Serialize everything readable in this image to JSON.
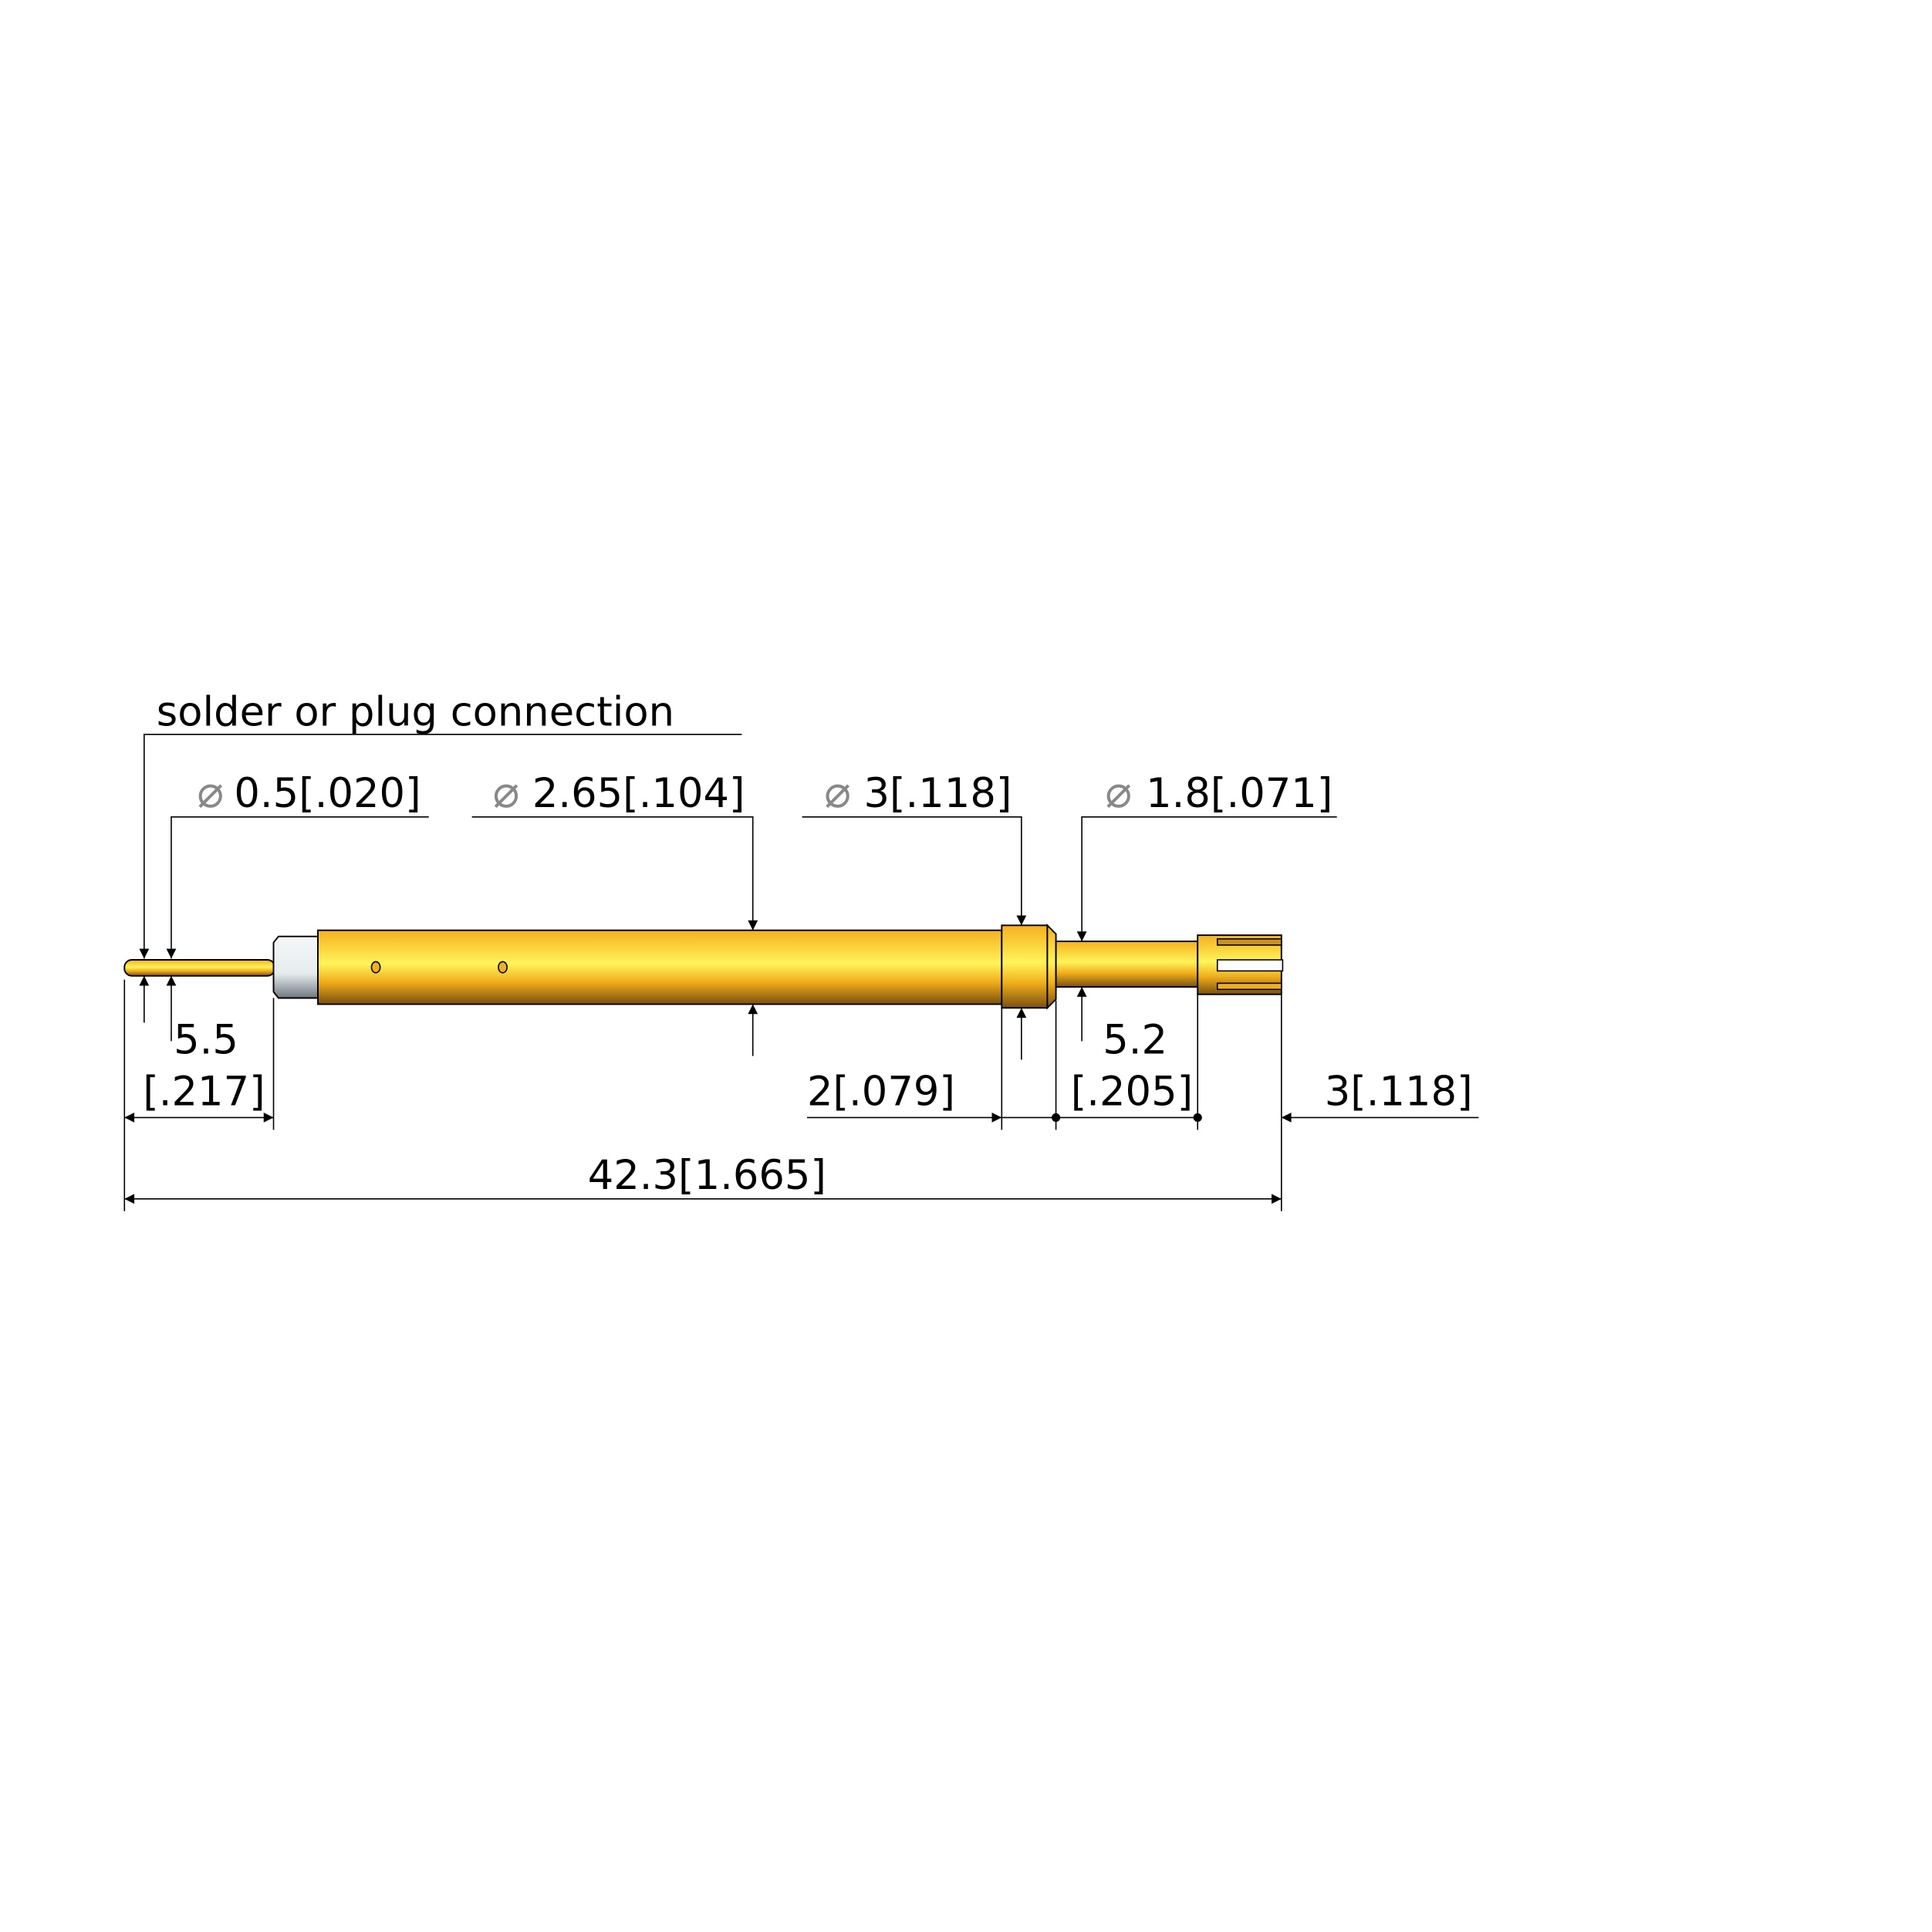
{
  "drawing": {
    "note": "solder or plug connection",
    "diameter_symbol": "⌀",
    "diameters": [
      {
        "value": "0.5[.020]"
      },
      {
        "value": "2.65[.104]"
      },
      {
        "value": "3[.118]"
      },
      {
        "value": "1.8[.071]"
      }
    ],
    "lengths": {
      "tail_top": "5.5",
      "tail_bottom": "[.217]",
      "collar": "2[.079]",
      "neck_top": "5.2",
      "neck_bottom": "[.205]",
      "head": "3[.118]",
      "overall": "42.3[1.665]"
    },
    "colors": {
      "gold": "#f5b51c",
      "gold_light": "#fff060",
      "gold_dark": "#8a5e10",
      "insulator": "#e8eef0"
    }
  }
}
